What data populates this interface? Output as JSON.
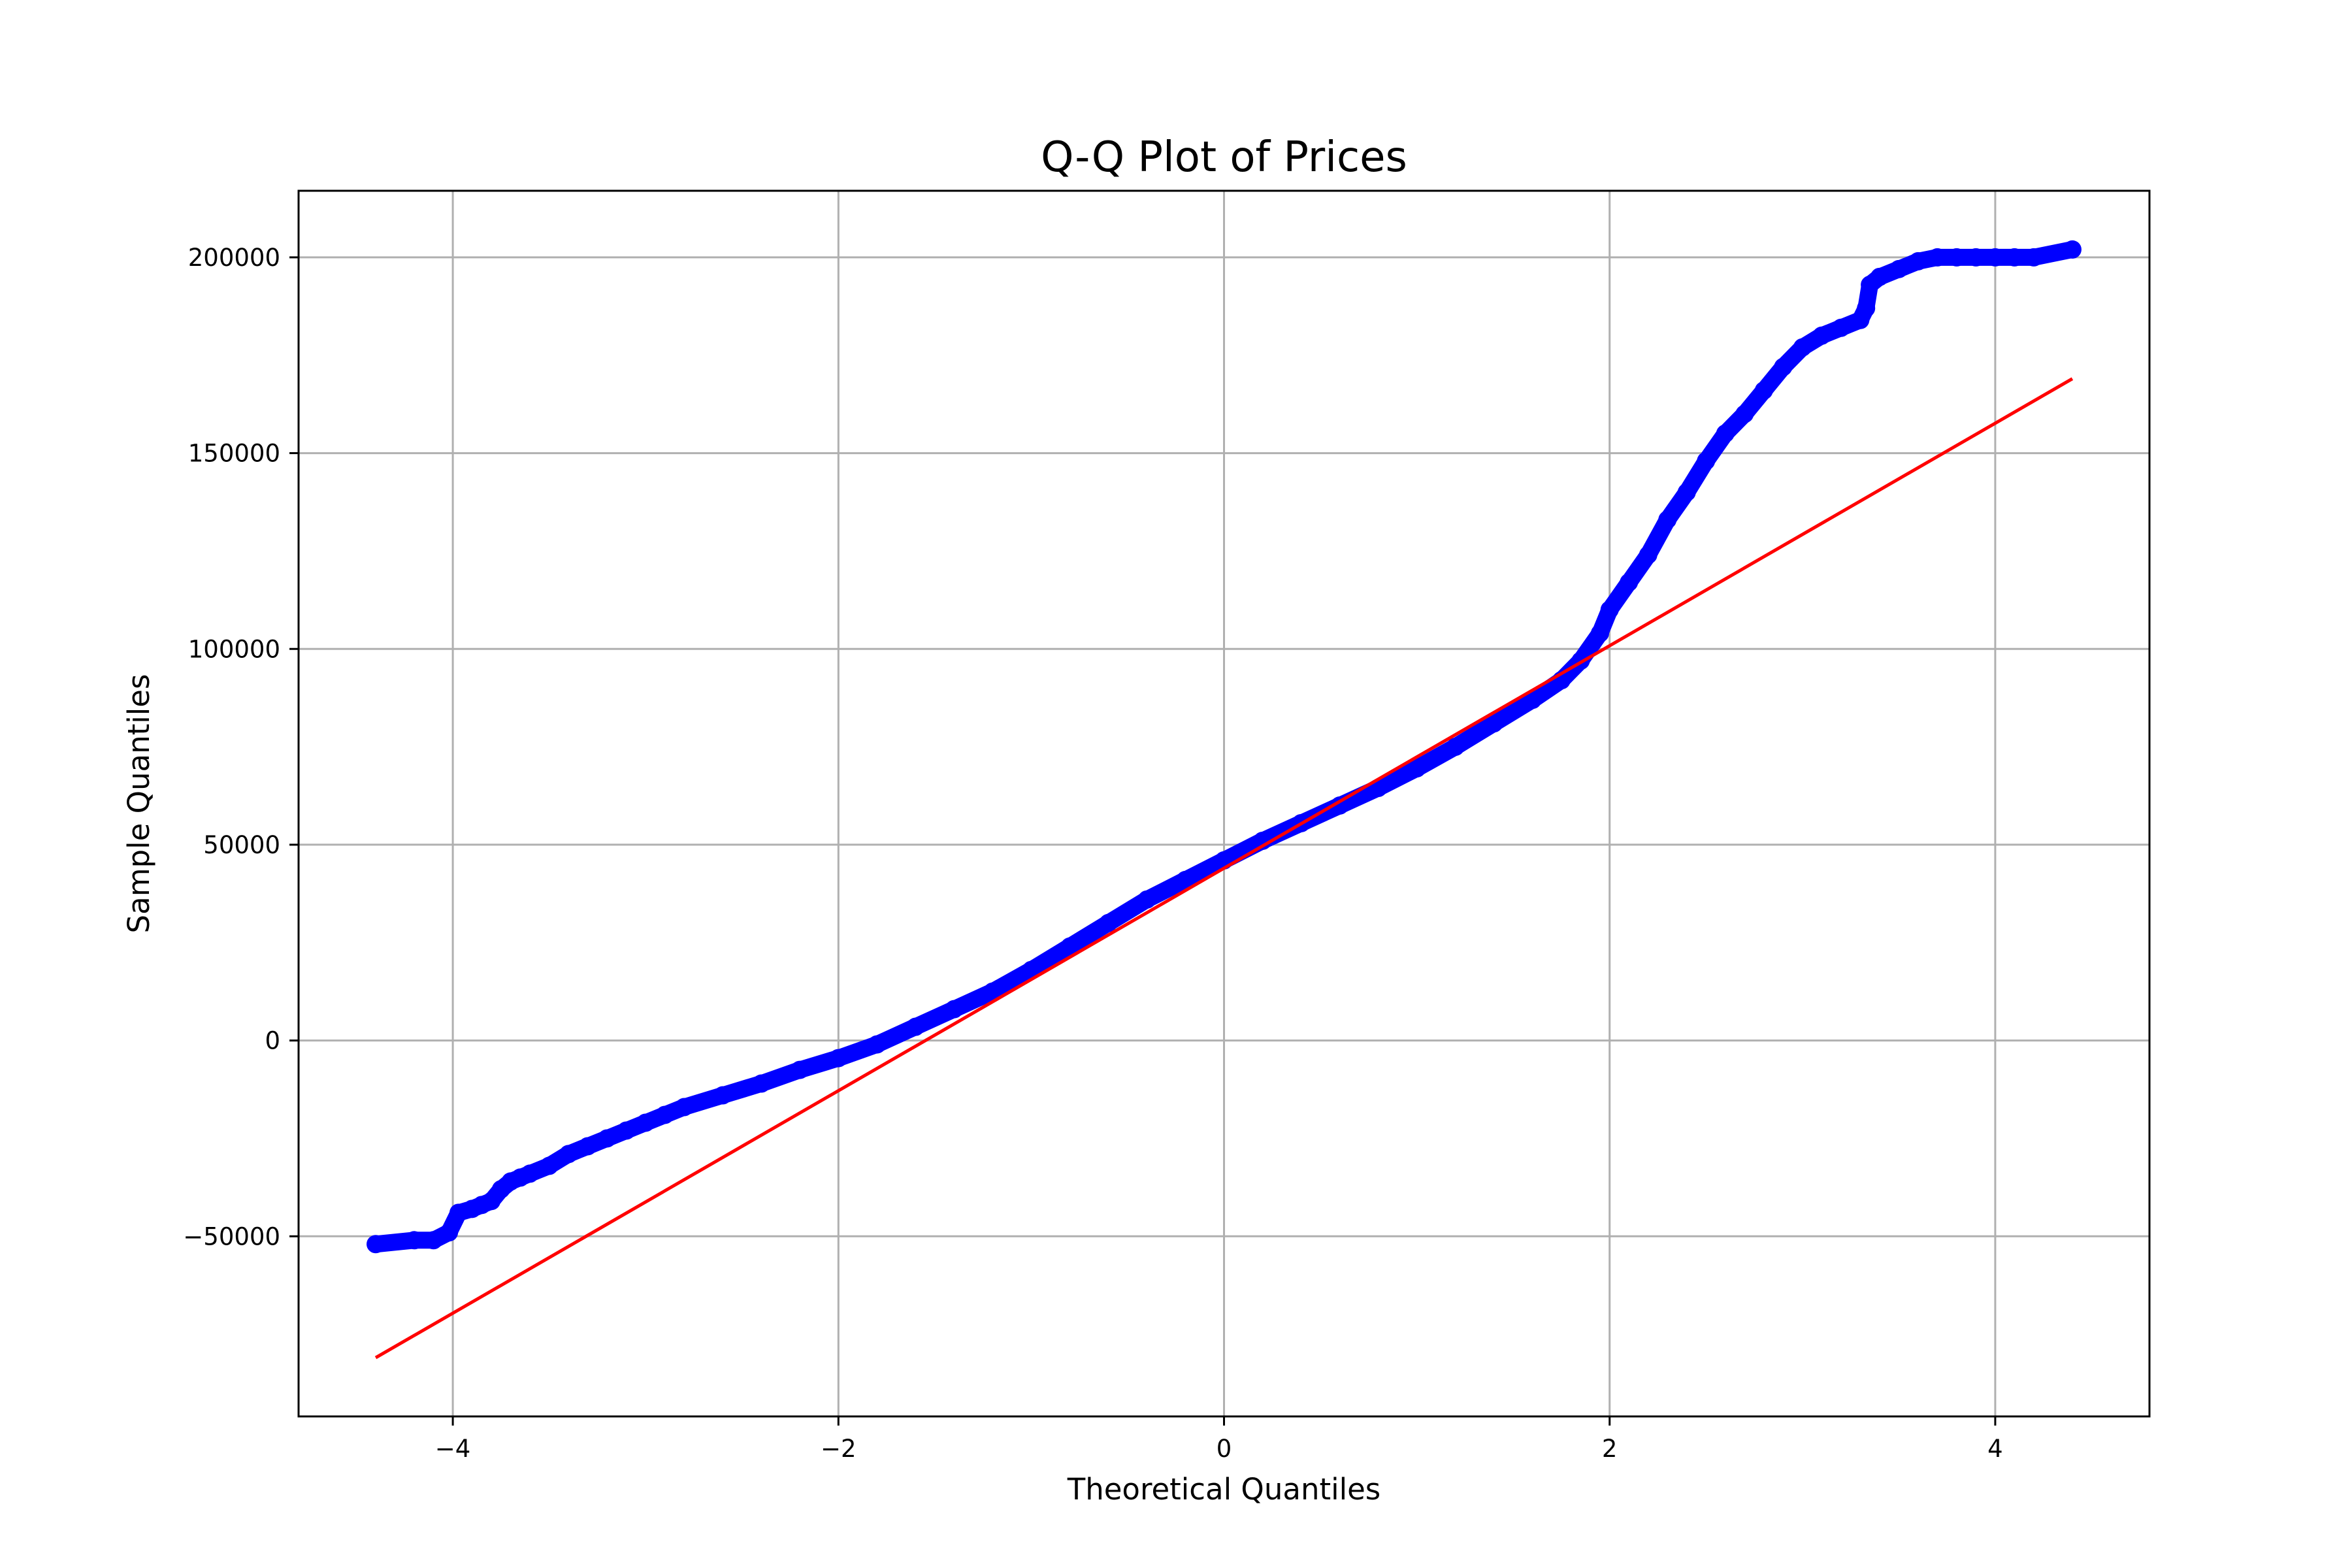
{
  "chart_data": {
    "type": "scatter",
    "title": "Q-Q Plot of Prices",
    "xlabel": "Theoretical Quantiles",
    "ylabel": "Sample Quantiles",
    "xlim": [
      -4.8,
      4.8
    ],
    "ylim": [
      -96000,
      217000
    ],
    "xticks": [
      -4,
      -2,
      0,
      2,
      4
    ],
    "xtick_labels": [
      "−4",
      "−2",
      "0",
      "2",
      "4"
    ],
    "yticks": [
      -50000,
      0,
      50000,
      100000,
      150000,
      200000
    ],
    "ytick_labels": [
      "−50000",
      "0",
      "50000",
      "100000",
      "150000",
      "200000"
    ],
    "grid": true,
    "legend": "none",
    "series": [
      {
        "kind": "points",
        "color": "#0000ff",
        "x": [
          -4.4,
          -4.2,
          -4.1,
          -4.02,
          -3.97,
          -3.9,
          -3.85,
          -3.8,
          -3.75,
          -3.7,
          -3.65,
          -3.6,
          -3.5,
          -3.4,
          -3.3,
          -3.2,
          -3.1,
          -3.0,
          -2.9,
          -2.8,
          -2.6,
          -2.4,
          -2.2,
          -2.0,
          -1.8,
          -1.6,
          -1.4,
          -1.2,
          -1.0,
          -0.8,
          -0.6,
          -0.4,
          -0.2,
          0.0,
          0.2,
          0.4,
          0.6,
          0.8,
          1.0,
          1.2,
          1.4,
          1.6,
          1.75,
          1.85,
          1.95,
          2.0,
          2.1,
          2.2,
          2.3,
          2.4,
          2.5,
          2.6,
          2.7,
          2.8,
          2.9,
          3.0,
          3.1,
          3.2,
          3.3,
          3.33,
          3.35,
          3.4,
          3.5,
          3.6,
          3.7,
          3.8,
          3.9,
          4.0,
          4.1,
          4.2,
          4.4
        ],
        "y": [
          -52000,
          -51000,
          -51000,
          -49000,
          -44000,
          -43000,
          -42000,
          -41000,
          -38000,
          -36000,
          -35000,
          -34000,
          -32000,
          -29000,
          -27000,
          -25000,
          -23000,
          -21000,
          -19000,
          -17000,
          -14000,
          -11000,
          -7500,
          -4500,
          -1000,
          3500,
          8000,
          12500,
          18000,
          24000,
          30000,
          36000,
          41000,
          46000,
          51000,
          55500,
          60000,
          64500,
          69500,
          75000,
          81000,
          87000,
          92000,
          97000,
          104000,
          110000,
          117000,
          124000,
          133000,
          140000,
          148000,
          155000,
          160000,
          166000,
          172000,
          177000,
          180000,
          182000,
          184000,
          187000,
          193000,
          195000,
          197000,
          199000,
          200000,
          200000,
          200000,
          200000,
          200000,
          200000,
          202000
        ]
      },
      {
        "kind": "line",
        "color": "#ff0000",
        "x": [
          -4.4,
          4.4
        ],
        "y": [
          -81000,
          169000
        ]
      }
    ]
  }
}
